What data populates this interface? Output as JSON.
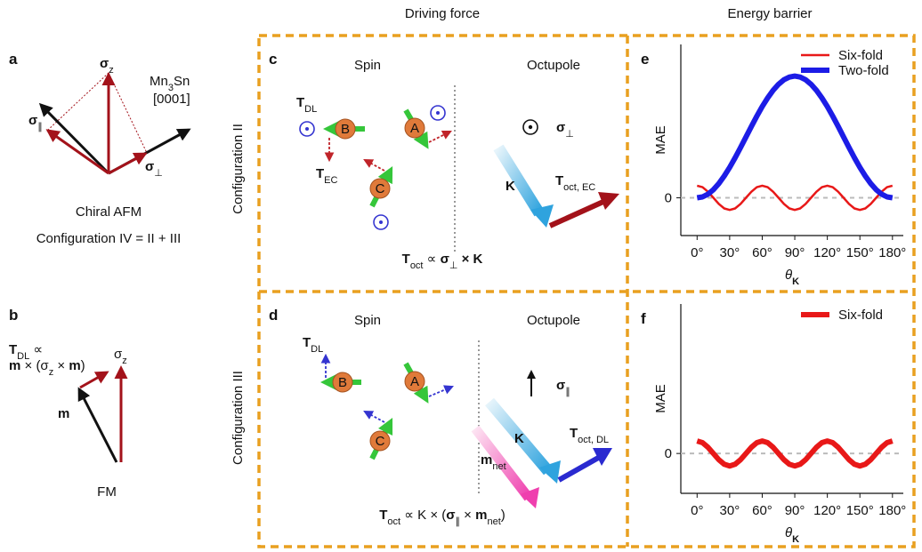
{
  "headers": {
    "driving_force": "Driving force",
    "energy_barrier": "Energy barrier"
  },
  "panel_a": {
    "label": "a",
    "sigma_z": [
      "σ",
      "z"
    ],
    "sigma_par": [
      "σ",
      "∥"
    ],
    "mn3sn": [
      "Mn",
      "3",
      "Sn"
    ],
    "direction": "[0001]",
    "sigma_perp": [
      "σ",
      "⊥"
    ],
    "caption": "Chiral AFM",
    "configuration": "Configuration IV = II + III"
  },
  "panel_b": {
    "label": "b",
    "t_dl": [
      "T",
      "DL",
      " ∝"
    ],
    "formula": [
      "m",
      " × (σ",
      "z",
      " × ",
      "m",
      ")"
    ],
    "sigma_z": [
      "σ",
      "z"
    ],
    "m": "m",
    "caption": "FM"
  },
  "rows": [
    "Configuration II",
    "Configuration III"
  ],
  "panel_c": {
    "label": "c",
    "spin": "Spin",
    "octupole": "Octupole",
    "t_dl": [
      "T",
      "DL"
    ],
    "t_ec": [
      "T",
      "EC"
    ],
    "atoms": [
      "B",
      "A",
      "C"
    ],
    "sigma_perp": [
      "σ",
      "⊥"
    ],
    "k": "K",
    "t_oct": [
      "T",
      "oct, EC"
    ],
    "formula": [
      "T",
      "oct",
      " ∝ ",
      "σ",
      "⊥",
      " × K"
    ]
  },
  "panel_d": {
    "label": "d",
    "spin": "Spin",
    "octupole": "Octupole",
    "t_dl": [
      "T",
      "DL"
    ],
    "atoms": [
      "B",
      "A",
      "C"
    ],
    "sigma_par": [
      "σ",
      "∥"
    ],
    "k": "K",
    "m_net": [
      "m",
      "net"
    ],
    "t_oct": [
      "T",
      "oct, DL"
    ],
    "formula": [
      "T",
      "oct",
      " ∝ K × (",
      "σ",
      "∥",
      " × ",
      "m",
      "net",
      ")"
    ]
  },
  "chart_data": [
    {
      "type": "line",
      "label": "e",
      "ylabel": "MAE",
      "xlabel": [
        "θ",
        "K"
      ],
      "legend": "upper right",
      "grid": true,
      "x": [
        0,
        5,
        10,
        15,
        20,
        25,
        30,
        35,
        40,
        45,
        50,
        55,
        60,
        65,
        70,
        75,
        80,
        85,
        90,
        95,
        100,
        105,
        110,
        115,
        120,
        125,
        130,
        135,
        140,
        145,
        150,
        155,
        160,
        165,
        170,
        175,
        180
      ],
      "xlim": [
        -15,
        190
      ],
      "ylim": [
        -0.31,
        1.26
      ],
      "yticks": [
        0
      ],
      "xticks": [
        {
          "value": 0,
          "label": "0°"
        },
        {
          "value": 30,
          "label": "30°"
        },
        {
          "value": 60,
          "label": "60°"
        },
        {
          "value": 90,
          "label": "90°"
        },
        {
          "value": 120,
          "label": "120°"
        },
        {
          "value": 150,
          "label": "150°"
        },
        {
          "value": 180,
          "label": "180°"
        }
      ],
      "series": [
        {
          "name": "Six-fold",
          "color": "#e81818",
          "values": [
            0.1,
            0.087,
            0.05,
            0,
            -0.05,
            -0.087,
            -0.1,
            -0.087,
            -0.05,
            0,
            0.05,
            0.087,
            0.1,
            0.087,
            0.05,
            0,
            -0.05,
            -0.087,
            -0.1,
            -0.087,
            -0.05,
            0,
            0.05,
            0.087,
            0.1,
            0.087,
            0.05,
            0,
            -0.05,
            -0.087,
            -0.1,
            -0.087,
            -0.05,
            0,
            0.05,
            0.087,
            0.1
          ]
        },
        {
          "name": "Two-fold",
          "color": "#1c1ce6",
          "values": [
            0,
            0.008,
            0.03,
            0.067,
            0.117,
            0.179,
            0.25,
            0.329,
            0.413,
            0.5,
            0.587,
            0.671,
            0.75,
            0.821,
            0.883,
            0.933,
            0.97,
            0.992,
            1,
            0.992,
            0.97,
            0.933,
            0.883,
            0.821,
            0.75,
            0.671,
            0.587,
            0.5,
            0.413,
            0.329,
            0.25,
            0.179,
            0.117,
            0.067,
            0.03,
            0.008,
            0
          ]
        }
      ]
    },
    {
      "type": "line",
      "label": "f",
      "ylabel": "MAE",
      "xlabel": [
        "θ",
        "K"
      ],
      "legend": "upper right",
      "grid": true,
      "x": [
        0,
        5,
        10,
        15,
        20,
        25,
        30,
        35,
        40,
        45,
        50,
        55,
        60,
        65,
        70,
        75,
        80,
        85,
        90,
        95,
        100,
        105,
        110,
        115,
        120,
        125,
        130,
        135,
        140,
        145,
        150,
        155,
        160,
        165,
        170,
        175,
        180
      ],
      "xlim": [
        -15,
        190
      ],
      "ylim": [
        -0.32,
        1.2
      ],
      "yticks": [
        0
      ],
      "xticks": [
        {
          "value": 0,
          "label": "0°"
        },
        {
          "value": 30,
          "label": "30°"
        },
        {
          "value": 60,
          "label": "60°"
        },
        {
          "value": 90,
          "label": "90°"
        },
        {
          "value": 120,
          "label": "120°"
        },
        {
          "value": 150,
          "label": "150°"
        },
        {
          "value": 180,
          "label": "180°"
        }
      ],
      "series": [
        {
          "name": "Six-fold",
          "color": "#e81818",
          "values": [
            0.1,
            0.087,
            0.05,
            0,
            -0.05,
            -0.087,
            -0.1,
            -0.087,
            -0.05,
            0,
            0.05,
            0.087,
            0.1,
            0.087,
            0.05,
            0,
            -0.05,
            -0.087,
            -0.1,
            -0.087,
            -0.05,
            0,
            0.05,
            0.087,
            0.1,
            0.087,
            0.05,
            0,
            -0.05,
            -0.087,
            -0.1,
            -0.087,
            -0.05,
            0,
            0.05,
            0.087,
            0.1
          ]
        }
      ]
    }
  ]
}
